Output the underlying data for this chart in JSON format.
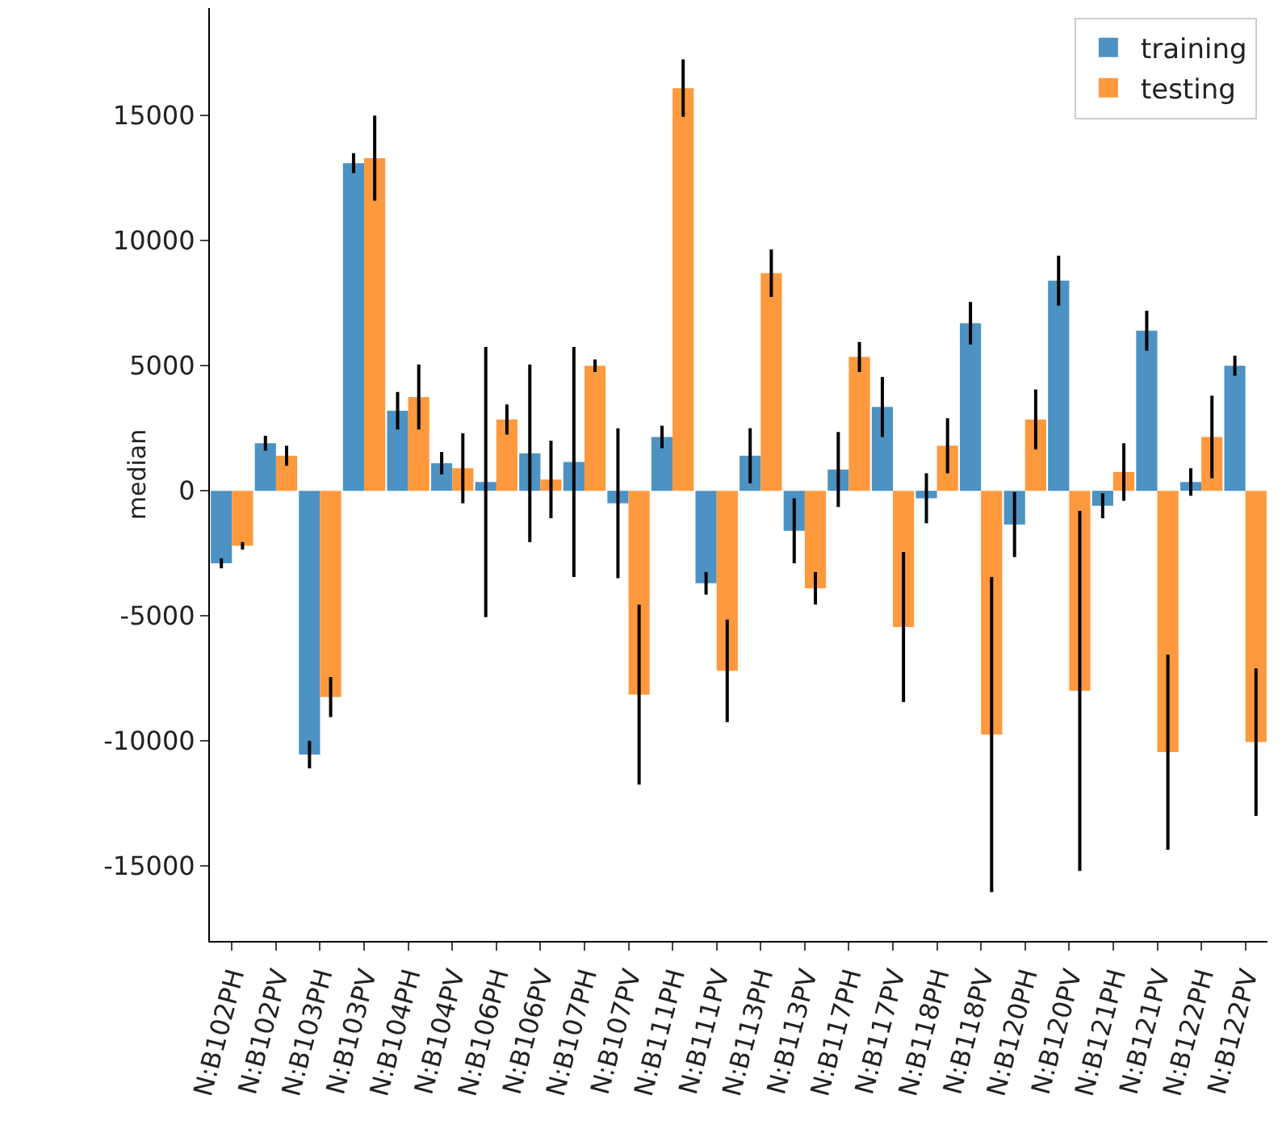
{
  "chart_data": {
    "type": "bar",
    "ylabel": "median",
    "categories": [
      "N:B102PH",
      "N:B102PV",
      "N:B103PH",
      "N:B103PV",
      "N:B104PH",
      "N:B104PV",
      "N:B106PH",
      "N:B106PV",
      "N:B107PH",
      "N:B107PV",
      "N:B111PH",
      "N:B111PV",
      "N:B113PH",
      "N:B113PV",
      "N:B117PH",
      "N:B117PV",
      "N:B118PH",
      "N:B118PV",
      "N:B120PH",
      "N:B120PV",
      "N:B121PH",
      "N:B121PV",
      "N:B122PH",
      "N:B122PV"
    ],
    "series": [
      {
        "name": "training",
        "color": "#4c92c3",
        "values": [
          -2900,
          1900,
          -10550,
          13100,
          3200,
          1100,
          350,
          1500,
          1150,
          -500,
          2150,
          -3700,
          1400,
          -1600,
          850,
          3350,
          -300,
          6700,
          -1350,
          8400,
          -600,
          6400,
          350,
          5000
        ],
        "errors": [
          200,
          300,
          550,
          400,
          750,
          450,
          5400,
          3550,
          4600,
          3000,
          450,
          450,
          1100,
          1300,
          1500,
          1200,
          1000,
          850,
          1300,
          1000,
          500,
          800,
          550,
          400
        ]
      },
      {
        "name": "testing",
        "color": "#ff993e",
        "values": [
          -2200,
          1400,
          -8250,
          13300,
          3750,
          900,
          2850,
          450,
          5000,
          -8150,
          16100,
          -7200,
          8700,
          -3900,
          5350,
          -5450,
          1800,
          -9750,
          2850,
          -8000,
          750,
          -10450,
          2150,
          -10050
        ],
        "errors": [
          150,
          400,
          800,
          1700,
          1300,
          1400,
          600,
          1550,
          250,
          3600,
          1150,
          2050,
          950,
          650,
          600,
          3000,
          1100,
          6300,
          1200,
          7200,
          1150,
          3900,
          1650,
          2950
        ]
      }
    ],
    "ylim": [
      -18000,
      19300
    ],
    "yticks": [
      -15000,
      -10000,
      -5000,
      0,
      5000,
      10000,
      15000
    ],
    "grid": false,
    "legend": "top right"
  }
}
